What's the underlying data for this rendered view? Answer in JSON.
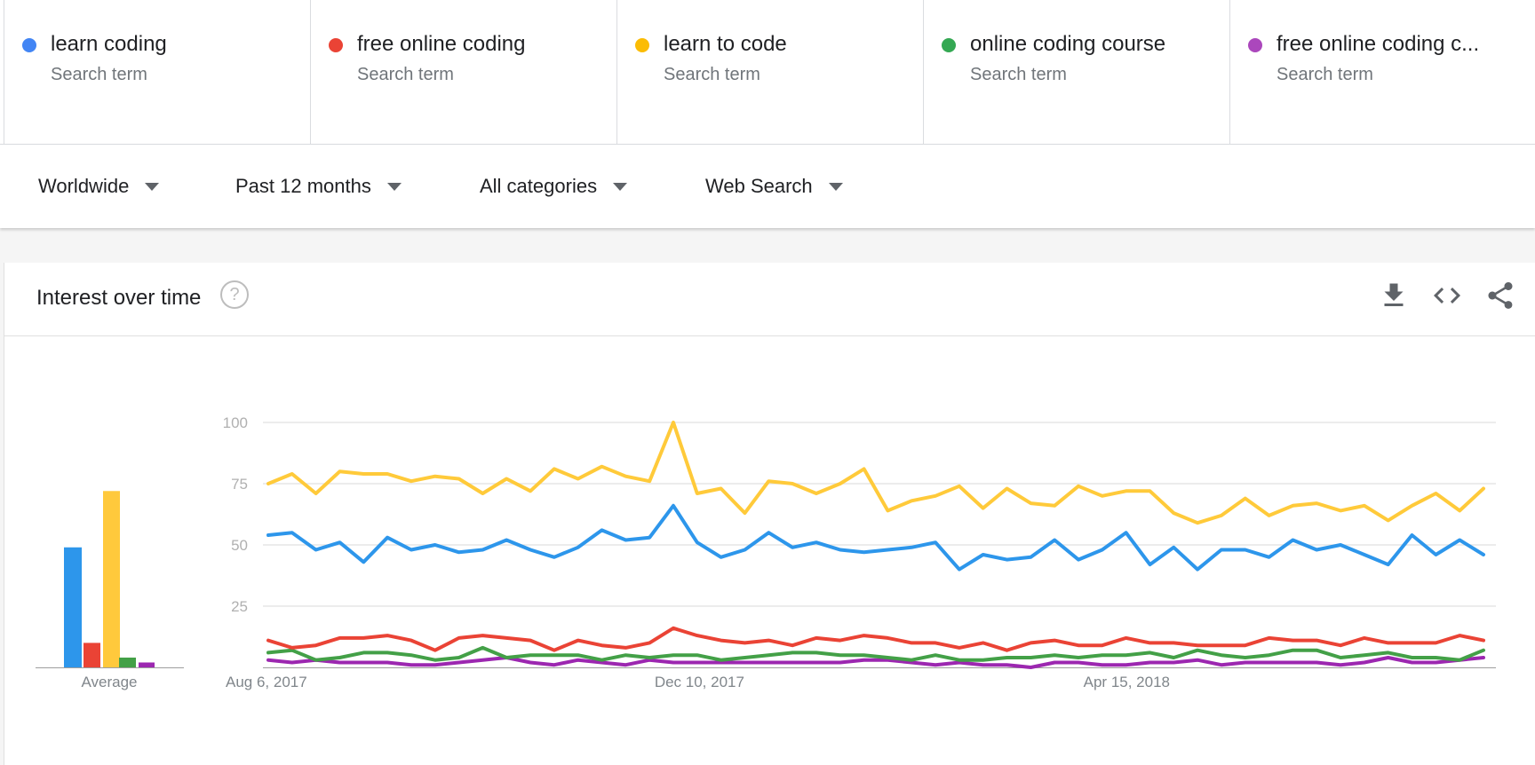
{
  "terms": [
    {
      "name": "learn coding",
      "type": "Search term",
      "color": "#4285f4"
    },
    {
      "name": "free online coding",
      "type": "Search term",
      "color": "#ea4335"
    },
    {
      "name": "learn to code",
      "type": "Search term",
      "color": "#fbbc04"
    },
    {
      "name": "online coding course",
      "type": "Search term",
      "color": "#34a853"
    },
    {
      "name": "free online coding c...",
      "type": "Search term",
      "color": "#ab47bc"
    }
  ],
  "filters": {
    "region": "Worldwide",
    "period": "Past 12 months",
    "category": "All categories",
    "property": "Web Search"
  },
  "card": {
    "title": "Interest over time",
    "help_glyph": "?",
    "icons": [
      "download-icon",
      "embed-code-icon",
      "share-icon"
    ]
  },
  "chart_data": [
    {
      "type": "bar",
      "categories": [
        "learn coding",
        "free online coding",
        "learn to code",
        "online coding course",
        "free online coding c..."
      ],
      "values": [
        49,
        10,
        72,
        4,
        2
      ],
      "colors": [
        "#2d96eb",
        "#ea4335",
        "#ffc93c",
        "#43a047",
        "#9c27b0"
      ],
      "xlabel": "Average",
      "ylim": [
        0,
        100
      ]
    },
    {
      "type": "line",
      "x_ticks": [
        "Aug 6, 2017",
        "Dec 10, 2017",
        "Apr 15, 2018"
      ],
      "x_tick_index": [
        0,
        18,
        36
      ],
      "y_ticks": [
        25,
        50,
        75,
        100
      ],
      "ylim": [
        0,
        100
      ],
      "grid": true,
      "series": [
        {
          "name": "learn to code",
          "color": "#ffca3a",
          "values": [
            75,
            79,
            71,
            80,
            79,
            79,
            76,
            78,
            77,
            71,
            77,
            72,
            81,
            77,
            82,
            78,
            76,
            100,
            71,
            73,
            63,
            76,
            75,
            71,
            75,
            81,
            64,
            68,
            70,
            74,
            65,
            73,
            67,
            66,
            74,
            70,
            72,
            72,
            63,
            59,
            62,
            69,
            62,
            66,
            67,
            64,
            66,
            60,
            66,
            71,
            64,
            73
          ]
        },
        {
          "name": "learn coding",
          "color": "#2d96eb",
          "values": [
            54,
            55,
            48,
            51,
            43,
            53,
            48,
            50,
            47,
            48,
            52,
            48,
            45,
            49,
            56,
            52,
            53,
            66,
            51,
            45,
            48,
            55,
            49,
            51,
            48,
            47,
            48,
            49,
            51,
            40,
            46,
            44,
            45,
            52,
            44,
            48,
            55,
            42,
            49,
            40,
            48,
            48,
            45,
            52,
            48,
            50,
            46,
            42,
            54,
            46,
            52,
            46
          ]
        },
        {
          "name": "free online coding",
          "color": "#ea4335",
          "values": [
            11,
            8,
            9,
            12,
            12,
            13,
            11,
            7,
            12,
            13,
            12,
            11,
            7,
            11,
            9,
            8,
            10,
            16,
            13,
            11,
            10,
            11,
            9,
            12,
            11,
            13,
            12,
            10,
            10,
            8,
            10,
            7,
            10,
            11,
            9,
            9,
            12,
            10,
            10,
            9,
            9,
            9,
            12,
            11,
            11,
            9,
            12,
            10,
            10,
            10,
            13,
            11
          ]
        },
        {
          "name": "online coding course",
          "color": "#43a047",
          "values": [
            6,
            7,
            3,
            4,
            6,
            6,
            5,
            3,
            4,
            8,
            4,
            5,
            5,
            5,
            3,
            5,
            4,
            5,
            5,
            3,
            4,
            5,
            6,
            6,
            5,
            5,
            4,
            3,
            5,
            3,
            3,
            4,
            4,
            5,
            4,
            5,
            5,
            6,
            4,
            7,
            5,
            4,
            5,
            7,
            7,
            4,
            5,
            6,
            4,
            4,
            3,
            7
          ]
        },
        {
          "name": "free online coding c...",
          "color": "#9c27b0",
          "values": [
            3,
            2,
            3,
            2,
            2,
            2,
            1,
            1,
            2,
            3,
            4,
            2,
            1,
            3,
            2,
            1,
            3,
            2,
            2,
            2,
            2,
            2,
            2,
            2,
            2,
            3,
            3,
            2,
            1,
            2,
            1,
            1,
            0,
            2,
            2,
            1,
            1,
            2,
            2,
            3,
            1,
            2,
            2,
            2,
            2,
            1,
            2,
            4,
            2,
            2,
            3,
            4
          ]
        }
      ]
    }
  ]
}
